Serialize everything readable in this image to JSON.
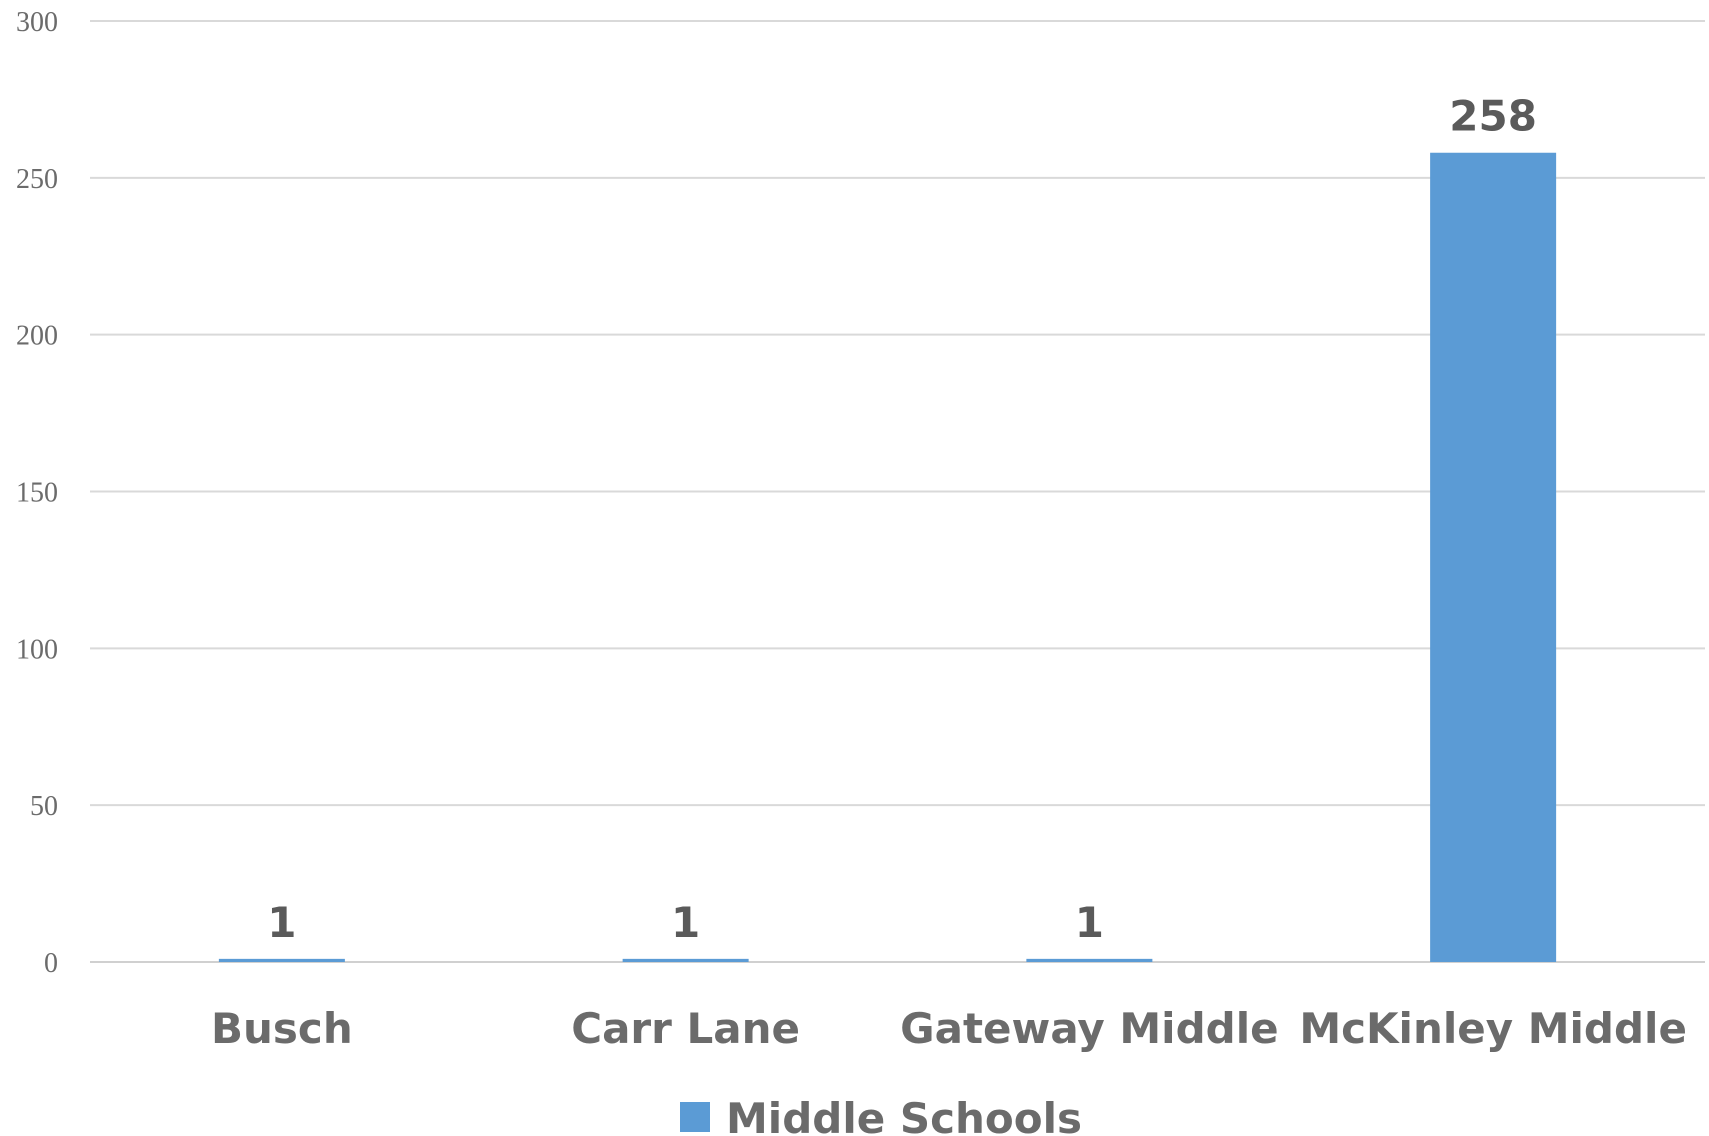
{
  "chart_data": {
    "type": "bar",
    "categories": [
      "Busch",
      "Carr Lane",
      "Gateway Middle",
      "McKinley Middle"
    ],
    "series": [
      {
        "name": "Middle Schools",
        "values": [
          1,
          1,
          1,
          258
        ],
        "color": "#5b9bd5"
      }
    ],
    "title": "",
    "xlabel": "",
    "ylabel": "",
    "ylim": [
      0,
      300
    ],
    "yticks": [
      0,
      50,
      100,
      150,
      200,
      250,
      300
    ],
    "grid": true,
    "data_labels": true,
    "legend": "bottom"
  }
}
